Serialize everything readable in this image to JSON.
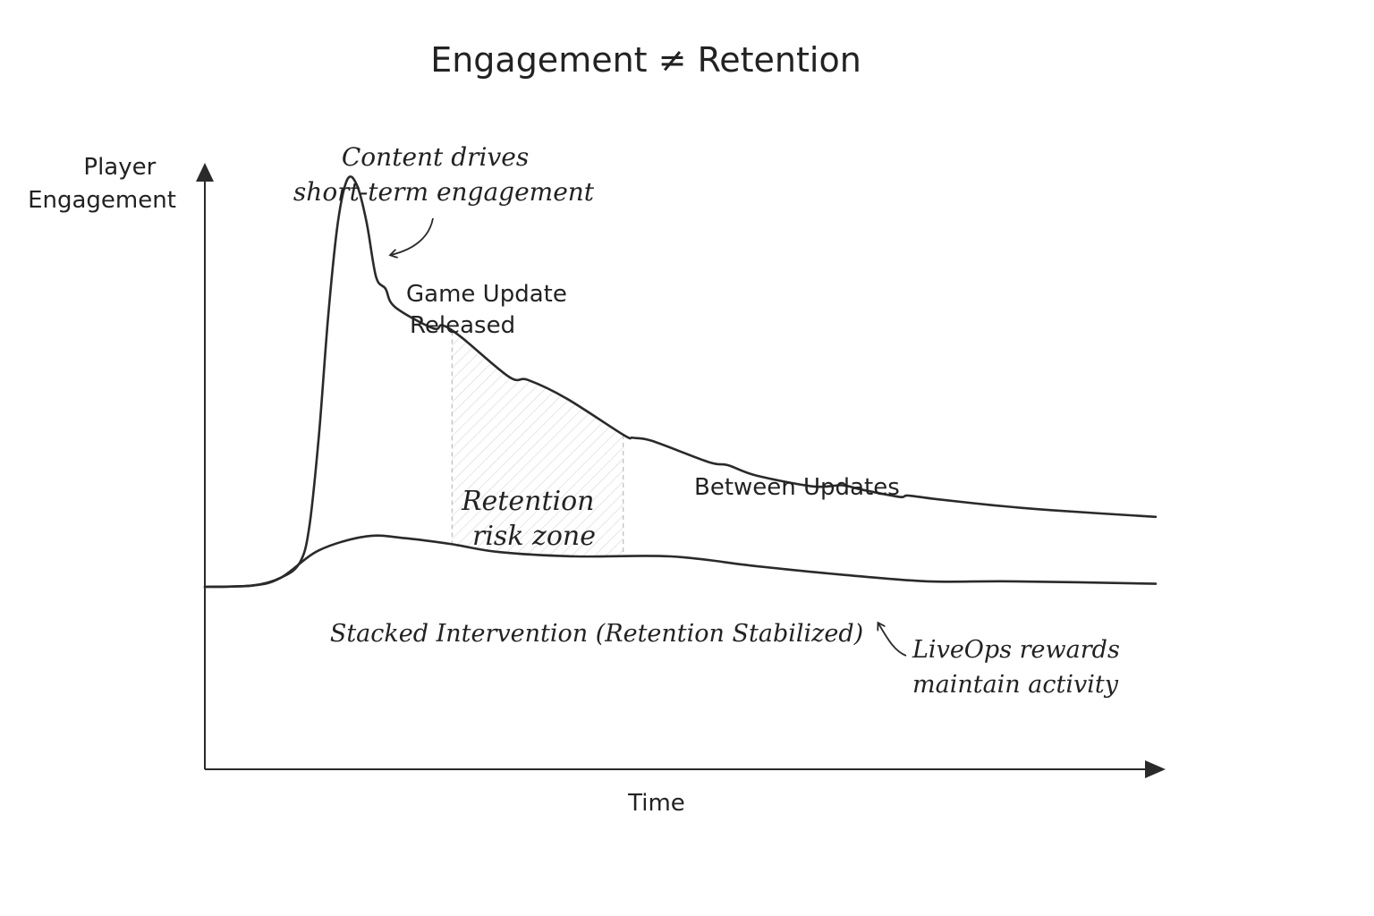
{
  "chart_data": {
    "type": "line",
    "title": "Engagement ≠ Retention",
    "xlabel": "Time",
    "ylabel": "Player Engagement",
    "xlim": [
      0,
      100
    ],
    "ylim": [
      0,
      100
    ],
    "grid": false,
    "ticks": false,
    "series": [
      {
        "name": "",
        "values": [
          [
            0,
            30
          ],
          [
            5,
            30.2
          ],
          [
            8,
            31.5
          ],
          [
            10,
            34
          ],
          [
            11,
            40
          ],
          [
            12,
            55
          ],
          [
            13,
            75
          ],
          [
            14,
            90
          ],
          [
            15,
            97
          ],
          [
            16,
            96
          ],
          [
            17,
            90
          ],
          [
            18,
            81
          ],
          [
            19,
            79
          ],
          [
            20,
            76
          ],
          [
            24,
            72.5
          ],
          [
            25,
            73
          ],
          [
            27,
            71
          ],
          [
            32,
            64.5
          ],
          [
            34,
            64
          ],
          [
            38,
            61
          ],
          [
            44,
            55
          ],
          [
            45,
            54.5
          ],
          [
            47,
            54
          ],
          [
            53,
            50.5
          ],
          [
            55,
            50
          ],
          [
            58,
            48.3
          ],
          [
            64,
            46.5
          ],
          [
            67,
            46.7
          ],
          [
            69,
            46
          ],
          [
            73,
            44.8
          ],
          [
            74,
            45
          ],
          [
            77,
            44.4
          ],
          [
            83,
            43.4
          ],
          [
            89,
            42.6
          ],
          [
            100,
            41.5
          ]
        ]
      },
      {
        "name": "",
        "values": [
          [
            0,
            30
          ],
          [
            5,
            30.2
          ],
          [
            8,
            31.5
          ],
          [
            12,
            36
          ],
          [
            17,
            38.3
          ],
          [
            21,
            38
          ],
          [
            26,
            37
          ],
          [
            31,
            35.7
          ],
          [
            39,
            35
          ],
          [
            49,
            35
          ],
          [
            58,
            33.4
          ],
          [
            67,
            32
          ],
          [
            76,
            30.9
          ],
          [
            85,
            30.9
          ],
          [
            100,
            30.5
          ]
        ]
      }
    ],
    "shaded_region": {
      "x": [
        26,
        44
      ],
      "label": "Retention risk zone"
    },
    "annotations": [
      {
        "text": [
          "Content drives",
          "short-term engagement"
        ],
        "style": "handwritten",
        "arrow": true
      },
      {
        "text": [
          "Game Update",
          "Released"
        ],
        "style": "plain"
      },
      {
        "text": [
          "Between Updates"
        ],
        "style": "plain"
      },
      {
        "text": [
          "Retention",
          "risk zone"
        ],
        "style": "handwritten"
      },
      {
        "text": [
          "Stacked Intervention (Retention Stabilized)"
        ],
        "style": "handwritten"
      },
      {
        "text": [
          "LiveOps rewards",
          "maintain activity"
        ],
        "style": "handwritten",
        "arrow": true
      }
    ]
  },
  "axis": {
    "ylabel_lines": [
      "Player",
      "Engagement"
    ]
  },
  "colors": {
    "line": "#2a2a2a",
    "text": "#222222",
    "hatch": "#cfcfcf",
    "background": "#ffffff"
  }
}
